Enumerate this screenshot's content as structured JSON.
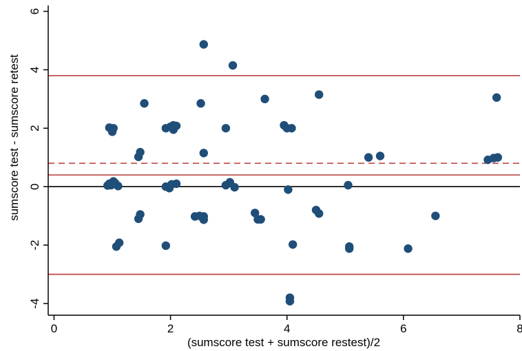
{
  "chart_data": {
    "type": "scatter",
    "title": "",
    "xlabel": "(sumscore test + sumscore restest)/2",
    "ylabel": "sumscore test - sumscore retest",
    "xlim": [
      -0.1,
      8.0
    ],
    "ylim": [
      -4.4,
      6.2
    ],
    "x_ticks": [
      0,
      2,
      4,
      6,
      8
    ],
    "y_ticks": [
      -4,
      -2,
      0,
      2,
      4,
      6
    ],
    "grid": false,
    "legend": "none",
    "colors": {
      "points": "#1f4e79",
      "reference_lines": "#c0504d",
      "zero_line": "#000000",
      "axis": "#000000"
    },
    "reference_lines": [
      {
        "y": 3.8,
        "style": "solid"
      },
      {
        "y": 0.8,
        "style": "dashed"
      },
      {
        "y": 0.4,
        "style": "solid"
      },
      {
        "y": -3.0,
        "style": "solid"
      }
    ],
    "zero_line": {
      "y": 0
    },
    "points": [
      {
        "x": 0.95,
        "y": 2.02
      },
      {
        "x": 1.02,
        "y": 2.0
      },
      {
        "x": 1.0,
        "y": 1.88
      },
      {
        "x": 0.95,
        "y": 0.1
      },
      {
        "x": 0.98,
        "y": 0.05
      },
      {
        "x": 1.02,
        "y": 0.18
      },
      {
        "x": 1.05,
        "y": 0.12
      },
      {
        "x": 1.1,
        "y": 0.02
      },
      {
        "x": 0.92,
        "y": 0.04
      },
      {
        "x": 1.07,
        "y": -2.05
      },
      {
        "x": 1.12,
        "y": -1.92
      },
      {
        "x": 1.45,
        "y": 1.02
      },
      {
        "x": 1.48,
        "y": 1.18
      },
      {
        "x": 1.55,
        "y": 2.85
      },
      {
        "x": 1.45,
        "y": -1.1
      },
      {
        "x": 1.48,
        "y": -0.95
      },
      {
        "x": 1.92,
        "y": 2.0
      },
      {
        "x": 2.0,
        "y": 2.05
      },
      {
        "x": 2.05,
        "y": 2.1
      },
      {
        "x": 2.1,
        "y": 2.08
      },
      {
        "x": 2.05,
        "y": 1.95
      },
      {
        "x": 1.92,
        "y": 0.0
      },
      {
        "x": 1.98,
        "y": -0.05
      },
      {
        "x": 2.02,
        "y": 0.08
      },
      {
        "x": 2.1,
        "y": 0.1
      },
      {
        "x": 1.92,
        "y": -2.02
      },
      {
        "x": 2.52,
        "y": 2.85
      },
      {
        "x": 2.57,
        "y": 4.87
      },
      {
        "x": 2.57,
        "y": 1.15
      },
      {
        "x": 2.42,
        "y": -1.02
      },
      {
        "x": 2.5,
        "y": -1.0
      },
      {
        "x": 2.57,
        "y": -1.02
      },
      {
        "x": 2.57,
        "y": -1.13
      },
      {
        "x": 2.95,
        "y": 2.0
      },
      {
        "x": 3.07,
        "y": 4.15
      },
      {
        "x": 2.95,
        "y": 0.05
      },
      {
        "x": 3.02,
        "y": 0.15
      },
      {
        "x": 3.1,
        "y": -0.02
      },
      {
        "x": 3.45,
        "y": -0.9
      },
      {
        "x": 3.5,
        "y": -1.12
      },
      {
        "x": 3.55,
        "y": -1.12
      },
      {
        "x": 3.62,
        "y": 3.0
      },
      {
        "x": 3.95,
        "y": 2.1
      },
      {
        "x": 4.0,
        "y": 2.0
      },
      {
        "x": 4.08,
        "y": 2.0
      },
      {
        "x": 4.02,
        "y": -0.1
      },
      {
        "x": 4.1,
        "y": -1.98
      },
      {
        "x": 4.05,
        "y": -3.8
      },
      {
        "x": 4.05,
        "y": -3.92
      },
      {
        "x": 4.5,
        "y": -0.8
      },
      {
        "x": 4.55,
        "y": -0.92
      },
      {
        "x": 4.55,
        "y": 3.15
      },
      {
        "x": 5.05,
        "y": 0.05
      },
      {
        "x": 5.07,
        "y": -2.05
      },
      {
        "x": 5.07,
        "y": -2.12
      },
      {
        "x": 5.4,
        "y": 1.0
      },
      {
        "x": 5.6,
        "y": 1.05
      },
      {
        "x": 6.08,
        "y": -2.12
      },
      {
        "x": 6.55,
        "y": -1.0
      },
      {
        "x": 7.45,
        "y": 0.92
      },
      {
        "x": 7.55,
        "y": 0.98
      },
      {
        "x": 7.62,
        "y": 1.0
      },
      {
        "x": 7.6,
        "y": 3.05
      }
    ]
  }
}
